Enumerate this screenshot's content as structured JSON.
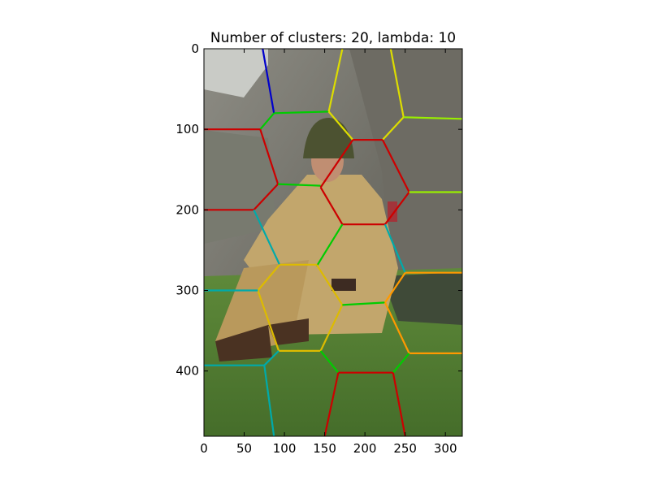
{
  "chart_data": {
    "type": "image-segmentation",
    "title": "Number of clusters: 20, lambda: 10",
    "xlabel": "",
    "ylabel": "",
    "xlim": [
      0,
      321
    ],
    "ylim": [
      481,
      0
    ],
    "xticks": [
      0,
      50,
      100,
      150,
      200,
      250,
      300
    ],
    "yticks": [
      0,
      100,
      200,
      300,
      400
    ],
    "grid": false,
    "image_description": "photograph: seated soldier in tan uniform and helmet in front of a stone wall, green grass below",
    "boundaries": [
      {
        "color": "#0000cc",
        "points": [
          [
            73,
            0
          ],
          [
            87,
            80
          ]
        ]
      },
      {
        "color": "#00cc00",
        "points": [
          [
            87,
            80
          ],
          [
            70,
            100
          ]
        ]
      },
      {
        "color": "#00cc00",
        "points": [
          [
            87,
            80
          ],
          [
            155,
            78
          ]
        ]
      },
      {
        "color": "#dddd00",
        "points": [
          [
            155,
            78
          ],
          [
            172,
            0
          ]
        ]
      },
      {
        "color": "#dddd00",
        "points": [
          [
            155,
            78
          ],
          [
            185,
            113
          ]
        ]
      },
      {
        "color": "#dddd00",
        "points": [
          [
            232,
            0
          ],
          [
            248,
            85
          ]
        ]
      },
      {
        "color": "#dddd00",
        "points": [
          [
            248,
            85
          ],
          [
            222,
            113
          ]
        ]
      },
      {
        "color": "#99ee00",
        "points": [
          [
            248,
            85
          ],
          [
            321,
            87
          ]
        ]
      },
      {
        "color": "#cc0000",
        "points": [
          [
            0,
            100
          ],
          [
            70,
            100
          ]
        ]
      },
      {
        "color": "#cc0000",
        "points": [
          [
            70,
            100
          ],
          [
            92,
            168
          ]
        ]
      },
      {
        "color": "#cc0000",
        "points": [
          [
            92,
            168
          ],
          [
            62,
            200
          ]
        ]
      },
      {
        "color": "#cc0000",
        "points": [
          [
            62,
            200
          ],
          [
            0,
            200
          ]
        ]
      },
      {
        "color": "#00cc00",
        "points": [
          [
            92,
            168
          ],
          [
            145,
            170
          ]
        ]
      },
      {
        "color": "#cc0000",
        "points": [
          [
            185,
            113
          ],
          [
            222,
            113
          ]
        ]
      },
      {
        "color": "#cc0000",
        "points": [
          [
            222,
            113
          ],
          [
            255,
            178
          ]
        ]
      },
      {
        "color": "#cc0000",
        "points": [
          [
            255,
            178
          ],
          [
            225,
            218
          ]
        ]
      },
      {
        "color": "#cc0000",
        "points": [
          [
            225,
            218
          ],
          [
            172,
            218
          ]
        ]
      },
      {
        "color": "#cc0000",
        "points": [
          [
            172,
            218
          ],
          [
            145,
            172
          ]
        ]
      },
      {
        "color": "#cc0000",
        "points": [
          [
            145,
            172
          ],
          [
            185,
            113
          ]
        ]
      },
      {
        "color": "#99ee00",
        "points": [
          [
            255,
            178
          ],
          [
            321,
            178
          ]
        ]
      },
      {
        "color": "#00aaaa",
        "points": [
          [
            62,
            200
          ],
          [
            94,
            268
          ]
        ]
      },
      {
        "color": "#00cc00",
        "points": [
          [
            172,
            218
          ],
          [
            140,
            270
          ]
        ]
      },
      {
        "color": "#00aaaa",
        "points": [
          [
            225,
            218
          ],
          [
            250,
            278
          ]
        ]
      },
      {
        "color": "#ff9900",
        "points": [
          [
            250,
            278
          ],
          [
            321,
            278
          ]
        ]
      },
      {
        "color": "#ddbb00",
        "points": [
          [
            94,
            268
          ],
          [
            140,
            268
          ]
        ]
      },
      {
        "color": "#ddbb00",
        "points": [
          [
            140,
            268
          ],
          [
            172,
            318
          ]
        ]
      },
      {
        "color": "#ddbb00",
        "points": [
          [
            172,
            318
          ],
          [
            145,
            375
          ]
        ]
      },
      {
        "color": "#ddbb00",
        "points": [
          [
            145,
            375
          ],
          [
            93,
            375
          ]
        ]
      },
      {
        "color": "#ddbb00",
        "points": [
          [
            93,
            375
          ],
          [
            67,
            300
          ]
        ]
      },
      {
        "color": "#ddbb00",
        "points": [
          [
            67,
            300
          ],
          [
            94,
            268
          ]
        ]
      },
      {
        "color": "#00aaaa",
        "points": [
          [
            0,
            300
          ],
          [
            67,
            300
          ]
        ]
      },
      {
        "color": "#00cc00",
        "points": [
          [
            172,
            318
          ],
          [
            225,
            315
          ]
        ]
      },
      {
        "color": "#ff9900",
        "points": [
          [
            250,
            278
          ],
          [
            225,
            315
          ]
        ]
      },
      {
        "color": "#ff9900",
        "points": [
          [
            225,
            315
          ],
          [
            255,
            378
          ]
        ]
      },
      {
        "color": "#ff9900",
        "points": [
          [
            255,
            378
          ],
          [
            321,
            378
          ]
        ]
      },
      {
        "color": "#00cc00",
        "points": [
          [
            255,
            378
          ],
          [
            235,
            402
          ]
        ]
      },
      {
        "color": "#00cc00",
        "points": [
          [
            145,
            375
          ],
          [
            167,
            402
          ]
        ]
      },
      {
        "color": "#00aaaa",
        "points": [
          [
            93,
            375
          ],
          [
            75,
            393
          ]
        ]
      },
      {
        "color": "#00aaaa",
        "points": [
          [
            0,
            393
          ],
          [
            75,
            393
          ]
        ]
      },
      {
        "color": "#00aaaa",
        "points": [
          [
            75,
            393
          ],
          [
            87,
            481
          ]
        ]
      },
      {
        "color": "#cc0000",
        "points": [
          [
            167,
            402
          ],
          [
            235,
            402
          ]
        ]
      },
      {
        "color": "#cc0000",
        "points": [
          [
            167,
            402
          ],
          [
            150,
            481
          ]
        ]
      },
      {
        "color": "#cc0000",
        "points": [
          [
            235,
            402
          ],
          [
            250,
            481
          ]
        ]
      }
    ]
  }
}
